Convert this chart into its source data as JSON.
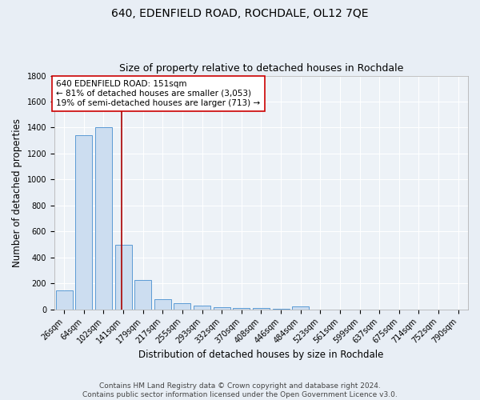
{
  "title": "640, EDENFIELD ROAD, ROCHDALE, OL12 7QE",
  "subtitle": "Size of property relative to detached houses in Rochdale",
  "xlabel": "Distribution of detached houses by size in Rochdale",
  "ylabel": "Number of detached properties",
  "categories": [
    "26sqm",
    "64sqm",
    "102sqm",
    "141sqm",
    "179sqm",
    "217sqm",
    "255sqm",
    "293sqm",
    "332sqm",
    "370sqm",
    "408sqm",
    "446sqm",
    "484sqm",
    "523sqm",
    "561sqm",
    "599sqm",
    "637sqm",
    "675sqm",
    "714sqm",
    "752sqm",
    "790sqm"
  ],
  "values": [
    145,
    1340,
    1400,
    500,
    225,
    80,
    48,
    28,
    18,
    8,
    12,
    5,
    20,
    0,
    0,
    0,
    0,
    0,
    0,
    0,
    0
  ],
  "bar_color": "#ccddf0",
  "bar_edge_color": "#5b9bd5",
  "red_line_color": "#aa0000",
  "annotation_text": "640 EDENFIELD ROAD: 151sqm\n← 81% of detached houses are smaller (3,053)\n19% of semi-detached houses are larger (713) →",
  "annotation_box_color": "#ffffff",
  "annotation_box_edge_color": "#cc0000",
  "ylim": [
    0,
    1800
  ],
  "yticks": [
    0,
    200,
    400,
    600,
    800,
    1000,
    1200,
    1400,
    1600,
    1800
  ],
  "footer": "Contains HM Land Registry data © Crown copyright and database right 2024.\nContains public sector information licensed under the Open Government Licence v3.0.",
  "bg_color": "#e8eef5",
  "plot_bg_color": "#edf2f7",
  "grid_color": "#ffffff",
  "title_fontsize": 10,
  "subtitle_fontsize": 9,
  "axis_label_fontsize": 8.5,
  "tick_fontsize": 7,
  "footer_fontsize": 6.5,
  "annotation_fontsize": 7.5
}
